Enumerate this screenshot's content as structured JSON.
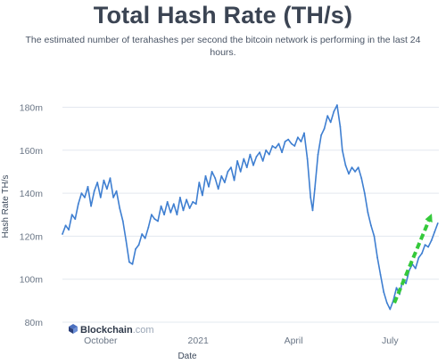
{
  "header": {
    "title": "Total Hash Rate (TH/s)",
    "subtitle": "The estimated number of terahashes per second the bitcoin network is performing in the last 24 hours."
  },
  "branding": {
    "name": "Blockchain",
    "suffix": ".com"
  },
  "colors": {
    "line": "#3f7fd1",
    "arrow": "#35c93b",
    "grid": "#e3e8ef",
    "text": "#3d4a5c"
  },
  "chart_data": {
    "type": "line",
    "title": "Total Hash Rate (TH/s)",
    "xlabel": "Date",
    "ylabel": "Hash Rate TH/s",
    "ylim": [
      80,
      186
    ],
    "xlim": [
      "2020-08-26",
      "2021-08-16"
    ],
    "yticks": [
      {
        "value": 80,
        "label": "80m"
      },
      {
        "value": 100,
        "label": "100m"
      },
      {
        "value": 120,
        "label": "120m"
      },
      {
        "value": 140,
        "label": "140m"
      },
      {
        "value": 160,
        "label": "160m"
      },
      {
        "value": 180,
        "label": "180m"
      }
    ],
    "xticks": [
      {
        "value": "2020-10-01",
        "label": "October"
      },
      {
        "value": "2021-01-01",
        "label": "2021"
      },
      {
        "value": "2021-04-01",
        "label": "April"
      },
      {
        "value": "2021-07-01",
        "label": "July"
      }
    ],
    "grid": "horizontal",
    "annotations": [
      {
        "type": "arrow",
        "color": "#35c93b",
        "style": "dashed",
        "from": [
          "2021-07-05",
          89
        ],
        "to": [
          "2021-08-08",
          129
        ]
      }
    ],
    "series": [
      {
        "points": [
          [
            "2020-08-26",
            121
          ],
          [
            "2020-08-29",
            125
          ],
          [
            "2020-09-01",
            123
          ],
          [
            "2020-09-04",
            130
          ],
          [
            "2020-09-07",
            128
          ],
          [
            "2020-09-10",
            135
          ],
          [
            "2020-09-13",
            140
          ],
          [
            "2020-09-16",
            138
          ],
          [
            "2020-09-19",
            143
          ],
          [
            "2020-09-22",
            134
          ],
          [
            "2020-09-25",
            141
          ],
          [
            "2020-09-28",
            145
          ],
          [
            "2020-10-01",
            138
          ],
          [
            "2020-10-04",
            146
          ],
          [
            "2020-10-07",
            142
          ],
          [
            "2020-10-10",
            147
          ],
          [
            "2020-10-13",
            138
          ],
          [
            "2020-10-16",
            141
          ],
          [
            "2020-10-19",
            133
          ],
          [
            "2020-10-22",
            127
          ],
          [
            "2020-10-25",
            118
          ],
          [
            "2020-10-28",
            108
          ],
          [
            "2020-10-31",
            107
          ],
          [
            "2020-11-03",
            114
          ],
          [
            "2020-11-06",
            116
          ],
          [
            "2020-11-09",
            121
          ],
          [
            "2020-11-12",
            119
          ],
          [
            "2020-11-15",
            124
          ],
          [
            "2020-11-18",
            130
          ],
          [
            "2020-11-21",
            128
          ],
          [
            "2020-11-24",
            127
          ],
          [
            "2020-11-27",
            134
          ],
          [
            "2020-11-30",
            130
          ],
          [
            "2020-12-03",
            136
          ],
          [
            "2020-12-06",
            131
          ],
          [
            "2020-12-09",
            135
          ],
          [
            "2020-12-12",
            130
          ],
          [
            "2020-12-15",
            138
          ],
          [
            "2020-12-18",
            132
          ],
          [
            "2020-12-21",
            137
          ],
          [
            "2020-12-24",
            133
          ],
          [
            "2020-12-27",
            136
          ],
          [
            "2020-12-30",
            135
          ],
          [
            "2021-01-02",
            145
          ],
          [
            "2021-01-05",
            139
          ],
          [
            "2021-01-08",
            148
          ],
          [
            "2021-01-11",
            143
          ],
          [
            "2021-01-14",
            150
          ],
          [
            "2021-01-17",
            147
          ],
          [
            "2021-01-20",
            142
          ],
          [
            "2021-01-23",
            148
          ],
          [
            "2021-01-26",
            145
          ],
          [
            "2021-01-29",
            150
          ],
          [
            "2021-02-01",
            152
          ],
          [
            "2021-02-04",
            146
          ],
          [
            "2021-02-07",
            155
          ],
          [
            "2021-02-10",
            150
          ],
          [
            "2021-02-13",
            156
          ],
          [
            "2021-02-16",
            152
          ],
          [
            "2021-02-19",
            158
          ],
          [
            "2021-02-22",
            153
          ],
          [
            "2021-02-25",
            157
          ],
          [
            "2021-02-28",
            159
          ],
          [
            "2021-03-03",
            155
          ],
          [
            "2021-03-06",
            160
          ],
          [
            "2021-03-09",
            158
          ],
          [
            "2021-03-12",
            162
          ],
          [
            "2021-03-15",
            161
          ],
          [
            "2021-03-18",
            163
          ],
          [
            "2021-03-21",
            159
          ],
          [
            "2021-03-24",
            164
          ],
          [
            "2021-03-27",
            165
          ],
          [
            "2021-03-30",
            163
          ],
          [
            "2021-04-02",
            162
          ],
          [
            "2021-04-05",
            166
          ],
          [
            "2021-04-08",
            164
          ],
          [
            "2021-04-11",
            168
          ],
          [
            "2021-04-14",
            156
          ],
          [
            "2021-04-17",
            138
          ],
          [
            "2021-04-19",
            132
          ],
          [
            "2021-04-21",
            142
          ],
          [
            "2021-04-24",
            158
          ],
          [
            "2021-04-27",
            167
          ],
          [
            "2021-04-30",
            170
          ],
          [
            "2021-05-03",
            176
          ],
          [
            "2021-05-06",
            173
          ],
          [
            "2021-05-09",
            178
          ],
          [
            "2021-05-12",
            181
          ],
          [
            "2021-05-15",
            171
          ],
          [
            "2021-05-17",
            160
          ],
          [
            "2021-05-20",
            153
          ],
          [
            "2021-05-23",
            149
          ],
          [
            "2021-05-26",
            152
          ],
          [
            "2021-05-29",
            150
          ],
          [
            "2021-06-01",
            152
          ],
          [
            "2021-06-04",
            147
          ],
          [
            "2021-06-07",
            140
          ],
          [
            "2021-06-10",
            131
          ],
          [
            "2021-06-13",
            125
          ],
          [
            "2021-06-16",
            120
          ],
          [
            "2021-06-19",
            110
          ],
          [
            "2021-06-22",
            102
          ],
          [
            "2021-06-25",
            94
          ],
          [
            "2021-06-28",
            89
          ],
          [
            "2021-07-01",
            86
          ],
          [
            "2021-07-04",
            90
          ],
          [
            "2021-07-07",
            96
          ],
          [
            "2021-07-10",
            93
          ],
          [
            "2021-07-13",
            100
          ],
          [
            "2021-07-16",
            98
          ],
          [
            "2021-07-19",
            104
          ],
          [
            "2021-07-22",
            107
          ],
          [
            "2021-07-25",
            105
          ],
          [
            "2021-07-28",
            110
          ],
          [
            "2021-07-31",
            112
          ],
          [
            "2021-08-03",
            116
          ],
          [
            "2021-08-06",
            115
          ],
          [
            "2021-08-09",
            118
          ],
          [
            "2021-08-12",
            122
          ],
          [
            "2021-08-15",
            126
          ]
        ]
      }
    ]
  }
}
